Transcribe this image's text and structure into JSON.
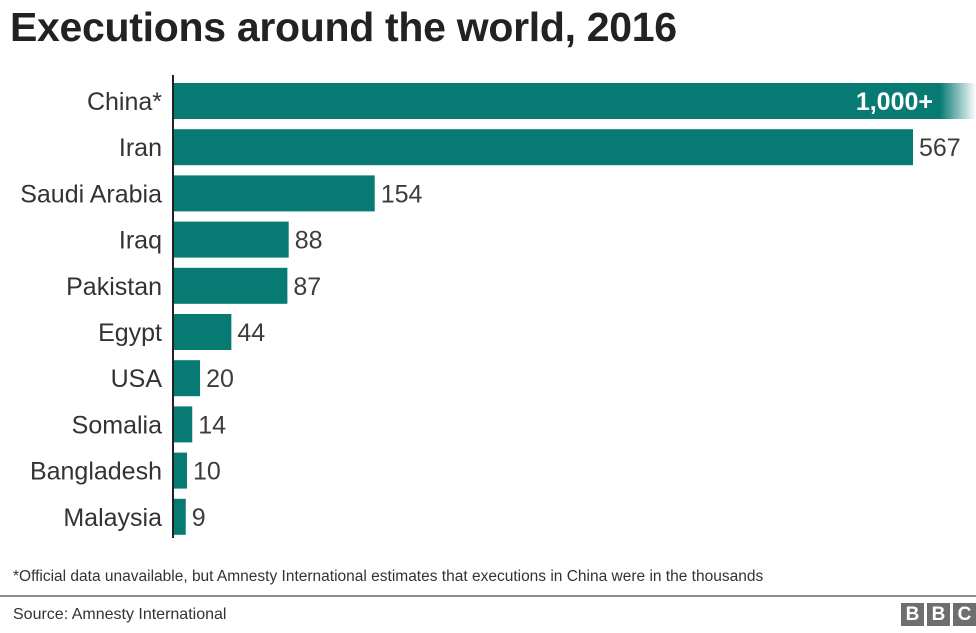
{
  "chart_data": {
    "type": "bar",
    "orientation": "horizontal",
    "title": "Executions around the world, 2016",
    "xlabel": "",
    "ylabel": "",
    "categories": [
      "China*",
      "Iran",
      "Saudi Arabia",
      "Iraq",
      "Pakistan",
      "Egypt",
      "USA",
      "Somalia",
      "Bangladesh",
      "Malaysia"
    ],
    "values": [
      1000,
      567,
      154,
      88,
      87,
      44,
      20,
      14,
      10,
      9
    ],
    "value_labels": [
      "1,000+",
      "567",
      "154",
      "88",
      "87",
      "44",
      "20",
      "14",
      "10",
      "9"
    ],
    "truncated": [
      true,
      false,
      false,
      false,
      false,
      false,
      false,
      false,
      false,
      false
    ],
    "xlim": [
      0,
      567
    ],
    "grid": false,
    "legend": "none",
    "bar_color": "#087a74",
    "footnote": "*Official data unavailable, but Amnesty International estimates that executions in China were in the thousands",
    "source": "Source: Amnesty International"
  },
  "branding": {
    "logo_letters": [
      "B",
      "B",
      "C"
    ]
  }
}
